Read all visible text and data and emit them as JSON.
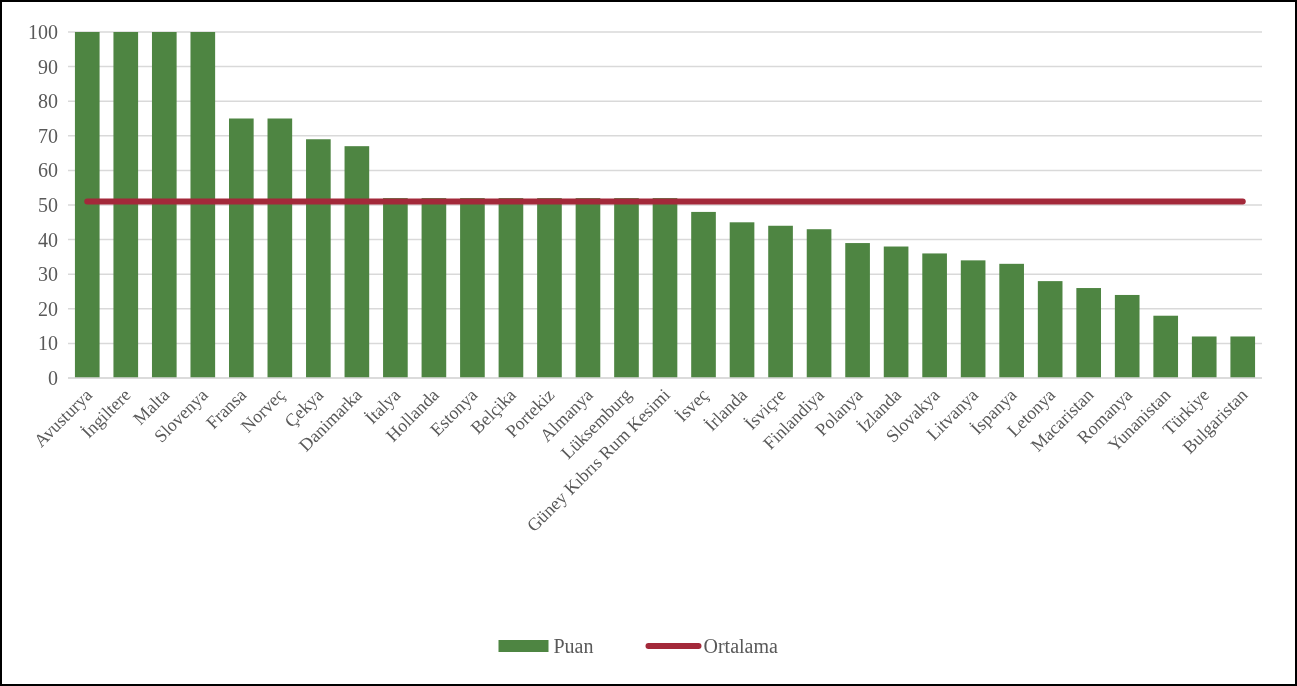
{
  "chart_data": {
    "type": "bar",
    "categories": [
      "Avusturya",
      "İngiltere",
      "Malta",
      "Slovenya",
      "Fransa",
      "Norveç",
      "Çekya",
      "Danimarka",
      "İtalya",
      "Hollanda",
      "Estonya",
      "Belçika",
      "Portekiz",
      "Almanya",
      "Lüksemburg",
      "Güney Kıbrıs Rum Kesimi",
      "İsveç",
      "İrlanda",
      "İsviçre",
      "Finlandiya",
      "Polanya",
      "İzlanda",
      "Slovakya",
      "Litvanya",
      "İspanya",
      "Letonya",
      "Macaristan",
      "Romanya",
      "Yunanistan",
      "Türkiye",
      "Bulgaristan"
    ],
    "series": [
      {
        "name": "Puan",
        "color": "#4e8542",
        "values": [
          100,
          100,
          100,
          100,
          75,
          75,
          69,
          67,
          52,
          52,
          52,
          52,
          52,
          52,
          52,
          52,
          48,
          45,
          44,
          43,
          39,
          38,
          36,
          34,
          33,
          28,
          26,
          24,
          18,
          12,
          12
        ]
      },
      {
        "name": "Ortalama",
        "type": "line",
        "color": "#a3293a",
        "values": [
          51,
          51,
          51,
          51,
          51,
          51,
          51,
          51,
          51,
          51,
          51,
          51,
          51,
          51,
          51,
          51,
          51,
          51,
          51,
          51,
          51,
          51,
          51,
          51,
          51,
          51,
          51,
          51,
          51,
          51,
          51
        ]
      }
    ],
    "ylim": [
      0,
      100
    ],
    "yticks": [
      0,
      10,
      20,
      30,
      40,
      50,
      60,
      70,
      80,
      90,
      100
    ],
    "grid": "y",
    "legend": "bottom",
    "marker": "none",
    "line_style": "solid"
  }
}
